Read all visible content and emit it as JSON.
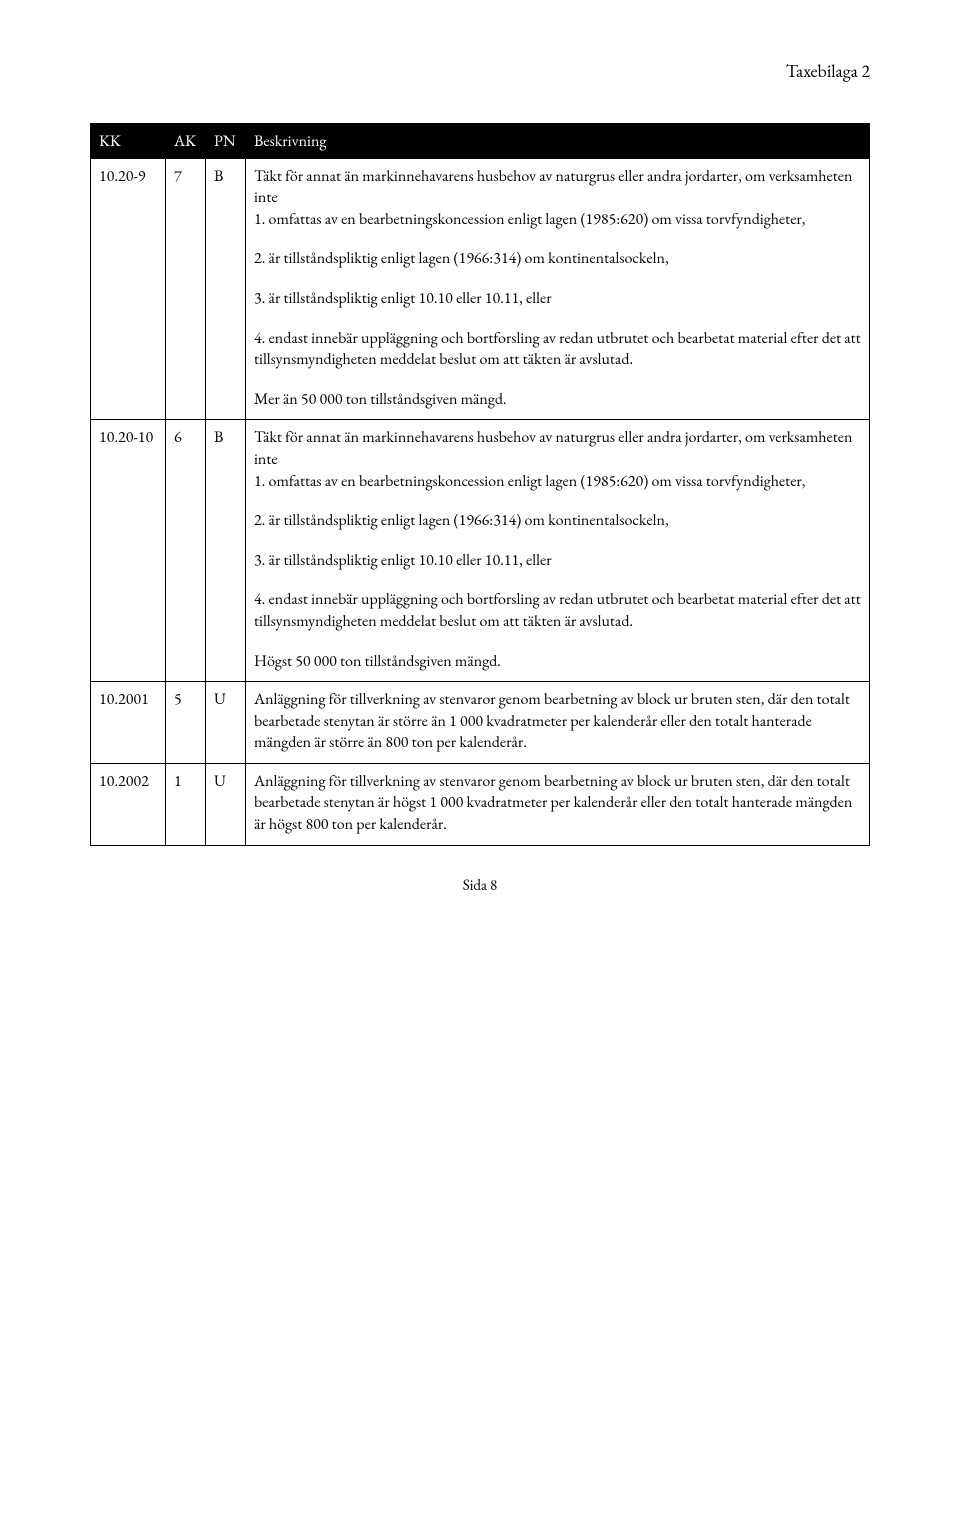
{
  "header": {
    "right": "Taxebilaga 2"
  },
  "columns": {
    "c1": "KK",
    "c2": "AK",
    "c3": "PN",
    "c4": "Beskrivning"
  },
  "rows": {
    "r1": {
      "kk": "10.20-9",
      "ak": "7",
      "pn": "B",
      "p1": "Täkt för annat än markinnehavarens husbehov av naturgrus eller andra jordarter, om verksamheten inte",
      "p2": "1. omfattas av en bearbetningskoncession enligt lagen (1985:620) om vissa torvfyndigheter,",
      "p3": "2. är tillståndspliktig enligt lagen (1966:314) om kontinentalsockeln,",
      "p4": "3. är tillståndspliktig enligt 10.10 eller 10.11, eller",
      "p5": "4. endast innebär uppläggning och bortforsling av redan utbrutet och bearbetat material efter det att tillsynsmyndigheten meddelat beslut om att täkten är avslutad.",
      "p6": "Mer än 50 000 ton tillståndsgiven mängd."
    },
    "r2": {
      "kk": "10.20-10",
      "ak": "6",
      "pn": "B",
      "p1": "Täkt för annat än markinnehavarens husbehov av naturgrus eller andra jordarter, om verksamheten inte",
      "p2": "1. omfattas av en bearbetningskoncession enligt lagen (1985:620) om vissa torvfyndigheter,",
      "p3": "2. är tillståndspliktig enligt lagen (1966:314) om kontinentalsockeln,",
      "p4": "3. är tillståndspliktig enligt 10.10 eller 10.11, eller",
      "p5": "4. endast innebär uppläggning och bortforsling av redan utbrutet och bearbetat material efter det att tillsynsmyndigheten meddelat beslut om att täkten är avslutad.",
      "p6": "Högst 50 000 ton tillståndsgiven mängd."
    },
    "r3": {
      "kk": "10.2001",
      "ak": "5",
      "pn": "U",
      "p1": "Anläggning för tillverkning av stenvaror genom bearbetning av block ur bruten sten, där den totalt bearbetade stenytan är större än 1 000 kvadratmeter per kalenderår eller den totalt hanterade mängden är större än 800 ton per kalenderår."
    },
    "r4": {
      "kk": "10.2002",
      "ak": "1",
      "pn": "U",
      "p1": "Anläggning för tillverkning av stenvaror genom bearbetning av block ur bruten sten, där den totalt bearbetade stenytan är högst 1 000 kvadratmeter per kalenderår eller den totalt hanterade mängden är högst 800 ton per kalenderår."
    }
  },
  "footer": {
    "page": "Sida 8"
  }
}
